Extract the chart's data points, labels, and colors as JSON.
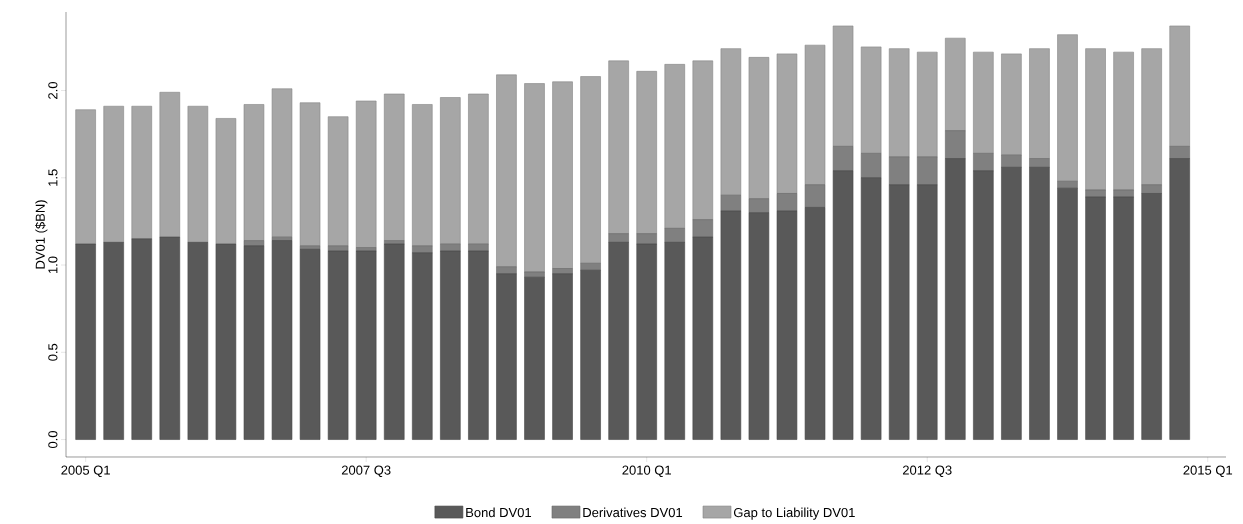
{
  "chart_data": {
    "type": "bar",
    "stacked": true,
    "ylabel": "DV01 ($BN)",
    "categories": [
      "2005 Q1",
      null,
      null,
      null,
      null,
      null,
      null,
      null,
      null,
      null,
      "2007 Q3",
      null,
      null,
      null,
      null,
      null,
      null,
      null,
      null,
      null,
      "2010 Q1",
      null,
      null,
      null,
      null,
      null,
      null,
      null,
      null,
      null,
      "2012 Q3",
      null,
      null,
      null,
      null,
      null,
      null,
      null,
      null,
      null,
      "2015 Q1"
    ],
    "series": [
      {
        "name": "Bond DV01",
        "color": "#595959",
        "values": [
          1.12,
          1.13,
          1.15,
          1.16,
          1.13,
          1.12,
          1.11,
          1.14,
          1.09,
          1.08,
          1.08,
          1.12,
          1.07,
          1.08,
          1.08,
          0.95,
          0.93,
          0.95,
          0.97,
          1.13,
          1.12,
          1.13,
          1.16,
          1.31,
          1.3,
          1.31,
          1.33,
          1.54,
          1.5,
          1.46,
          1.46,
          1.61,
          1.54,
          1.56,
          1.56,
          1.44,
          1.39,
          1.39,
          1.41,
          1.61,
          null
        ]
      },
      {
        "name": "Derivatives DV01",
        "color": "#808080",
        "values": [
          0,
          0,
          0,
          0,
          0,
          0,
          0.03,
          0.02,
          0.02,
          0.03,
          0.02,
          0.02,
          0.04,
          0.04,
          0.04,
          0.04,
          0.03,
          0.03,
          0.04,
          0.05,
          0.06,
          0.08,
          0.1,
          0.09,
          0.08,
          0.1,
          0.13,
          0.14,
          0.14,
          0.16,
          0.16,
          0.16,
          0.1,
          0.07,
          0.05,
          0.04,
          0.04,
          0.04,
          0.05,
          0.07,
          null
        ]
      },
      {
        "name": "Gap to Liability DV01",
        "color": "#a6a6a6",
        "values": [
          0.77,
          0.78,
          0.76,
          0.83,
          0.78,
          0.72,
          0.78,
          0.85,
          0.82,
          0.74,
          0.84,
          0.84,
          0.81,
          0.84,
          0.86,
          1.1,
          1.08,
          1.07,
          1.07,
          0.99,
          0.93,
          0.94,
          0.91,
          0.84,
          0.81,
          0.8,
          0.8,
          0.69,
          0.61,
          0.62,
          0.6,
          0.53,
          0.58,
          0.58,
          0.63,
          0.84,
          0.81,
          0.79,
          0.78,
          0.69,
          null
        ]
      }
    ],
    "ylim": [
      -0.1,
      2.45
    ],
    "yticks": [
      {
        "value": 0,
        "label": "0.0"
      },
      {
        "value": 0.5,
        "label": "0.5"
      },
      {
        "value": 1,
        "label": "1.0"
      },
      {
        "value": 1.5,
        "label": "1.5"
      },
      {
        "value": 2,
        "label": "2.0"
      }
    ],
    "legend": "bottom",
    "grid": false
  }
}
